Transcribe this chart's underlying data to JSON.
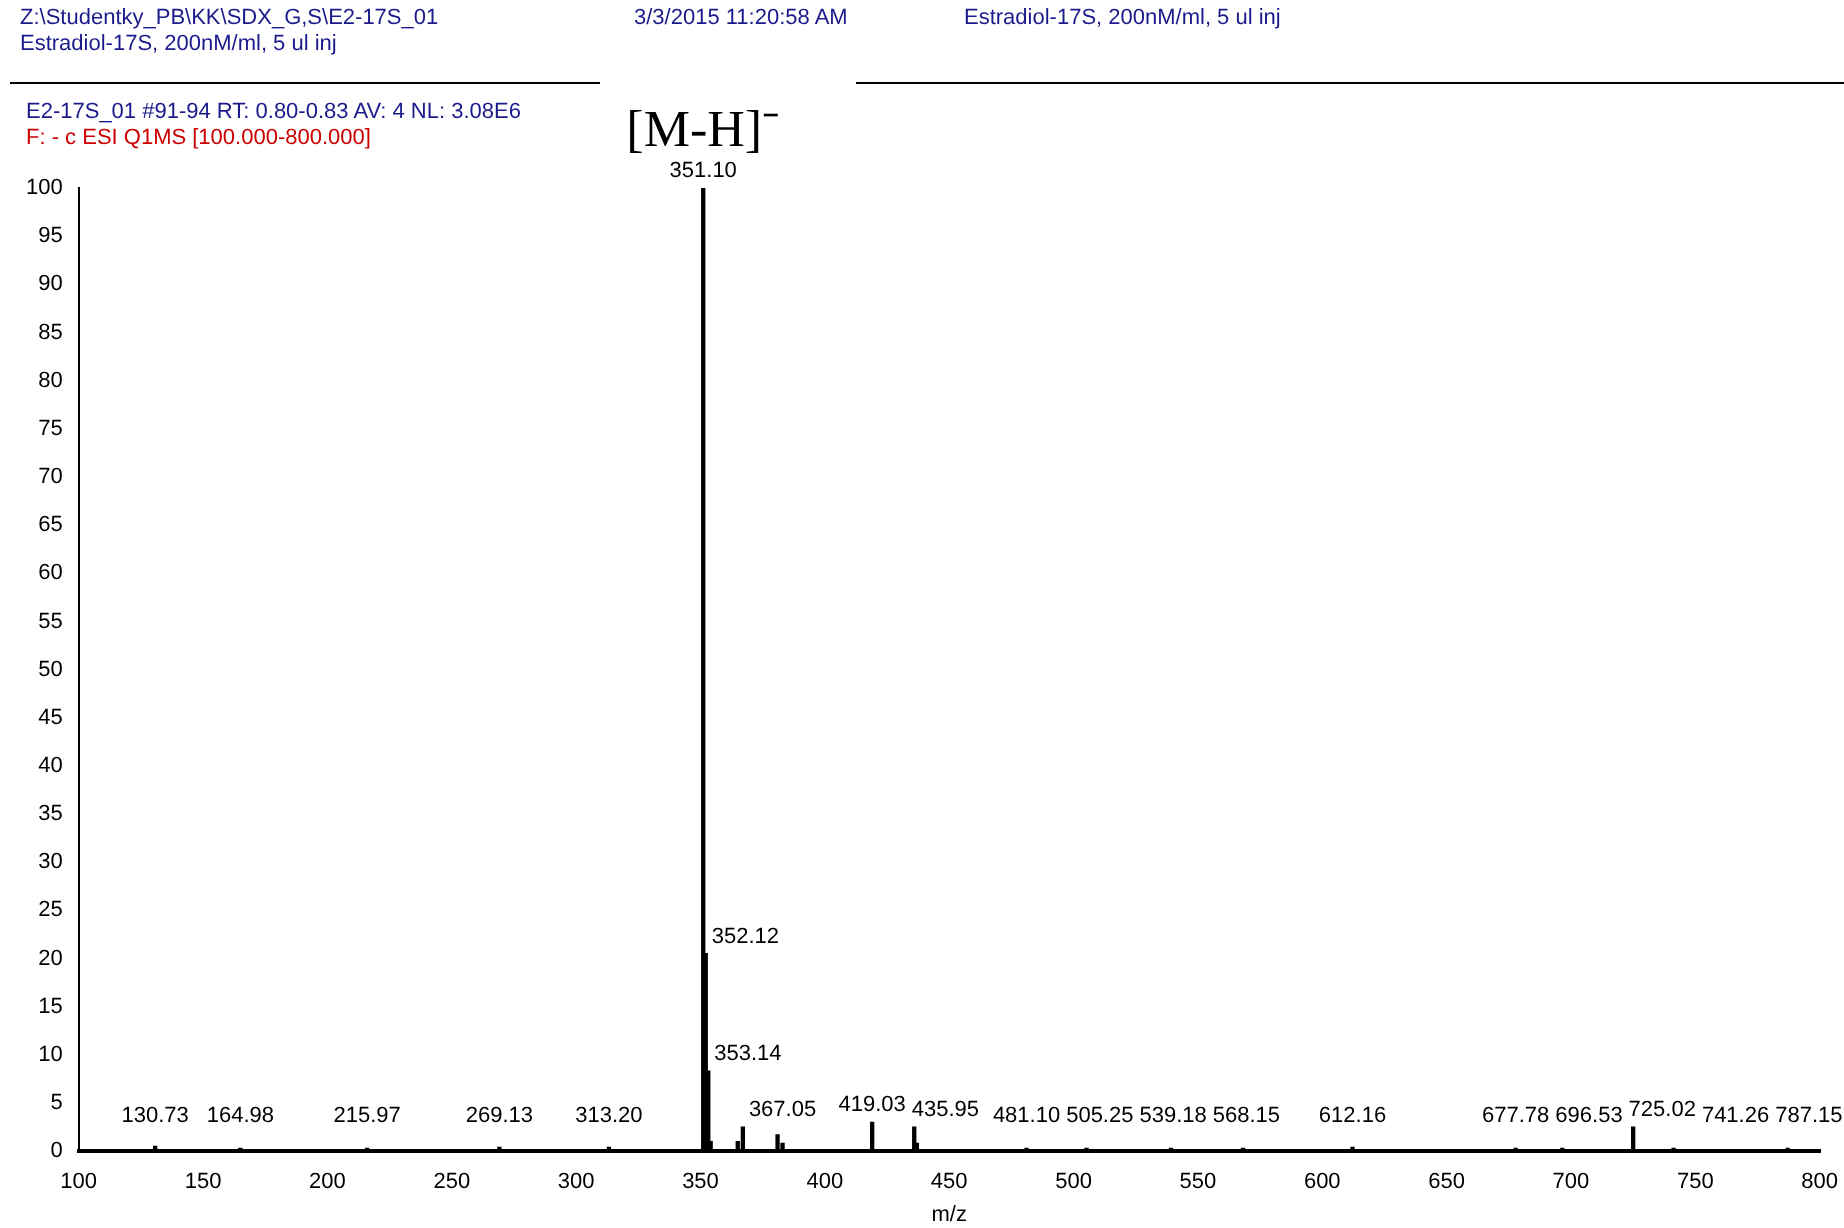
{
  "chart_data": {
    "type": "bar",
    "xlabel": "m/z",
    "annotations": [
      "Z:\\Studentky_PB\\KK\\SDX_G,S\\E2-17S_01",
      "Estradiol-17S, 200nM/ml, 5 ul inj",
      "3/3/2015 11:20:58 AM",
      "Estradiol-17S, 200nM/ml, 5 ul inj",
      "E2-17S_01 #91-94  RT: 0.80-0.83  AV: 4  NL: 3.08E6",
      "F: - c ESI Q1MS [100.000-800.000]",
      {
        "text": "130.73",
        "x": 130.73,
        "y": 0.5
      },
      {
        "text": "164.98",
        "x": 164.98,
        "y": 0.3
      },
      {
        "text": "215.97",
        "x": 215.97,
        "y": 0.3
      },
      {
        "text": "269.13",
        "x": 269.13,
        "y": 0.4
      },
      {
        "text": "313.20",
        "x": 313.2,
        "y": 0.4
      },
      {
        "text": "351.10",
        "x": 351.1,
        "y": 100
      },
      {
        "text": "[M-H]⁻",
        "x": 351.1,
        "y": 100
      },
      {
        "text": "352.12",
        "x": 352.12,
        "y": 20.5
      },
      {
        "text": "353.14",
        "x": 353.14,
        "y": 8.3
      },
      {
        "text": "367.05",
        "x": 367.05,
        "y": 2.5
      },
      {
        "text": "419.03",
        "x": 419.03,
        "y": 3.0
      },
      {
        "text": "435.95",
        "x": 435.95,
        "y": 2.5
      },
      {
        "text": "481.10",
        "x": 481.1,
        "y": 0.3
      },
      {
        "text": "505.25",
        "x": 505.25,
        "y": 0.3
      },
      {
        "text": "539.18",
        "x": 539.18,
        "y": 0.3
      },
      {
        "text": "568.15",
        "x": 568.15,
        "y": 0.3
      },
      {
        "text": "612.16",
        "x": 612.16,
        "y": 0.4
      },
      {
        "text": "677.78",
        "x": 677.78,
        "y": 0.3
      },
      {
        "text": "696.53",
        "x": 696.53,
        "y": 0.3
      },
      {
        "text": "725.02",
        "x": 725.02,
        "y": 2.5
      },
      {
        "text": "741.26",
        "x": 741.26,
        "y": 0.3
      },
      {
        "text": "787.15",
        "x": 787.15,
        "y": 0.3
      }
    ],
    "x": [
      130.73,
      164.98,
      215.97,
      269.13,
      313.2,
      351.1,
      352.12,
      353.14,
      354.1,
      365.0,
      367.05,
      381.0,
      383.0,
      419.03,
      435.95,
      437.0,
      481.1,
      505.25,
      539.18,
      568.15,
      612.16,
      677.78,
      696.53,
      725.02,
      741.26,
      787.15
    ],
    "values": [
      0.5,
      0.3,
      0.3,
      0.4,
      0.4,
      100,
      20.5,
      8.3,
      1.0,
      1.0,
      2.5,
      1.7,
      0.8,
      3.0,
      2.5,
      0.8,
      0.3,
      0.3,
      0.3,
      0.3,
      0.4,
      0.3,
      0.3,
      2.5,
      0.3,
      0.3
    ],
    "color": "#000000",
    "xlim": [
      100,
      800
    ],
    "xticks": [
      100,
      150,
      200,
      250,
      300,
      350,
      400,
      450,
      500,
      550,
      600,
      650,
      700,
      750,
      800
    ],
    "ylim": [
      0,
      100
    ],
    "yticks": [
      0,
      5,
      10,
      15,
      20,
      25,
      30,
      35,
      40,
      45,
      50,
      55,
      60,
      65,
      70,
      75,
      80,
      85,
      90,
      95,
      100
    ],
    "grid": false,
    "legend": false
  }
}
